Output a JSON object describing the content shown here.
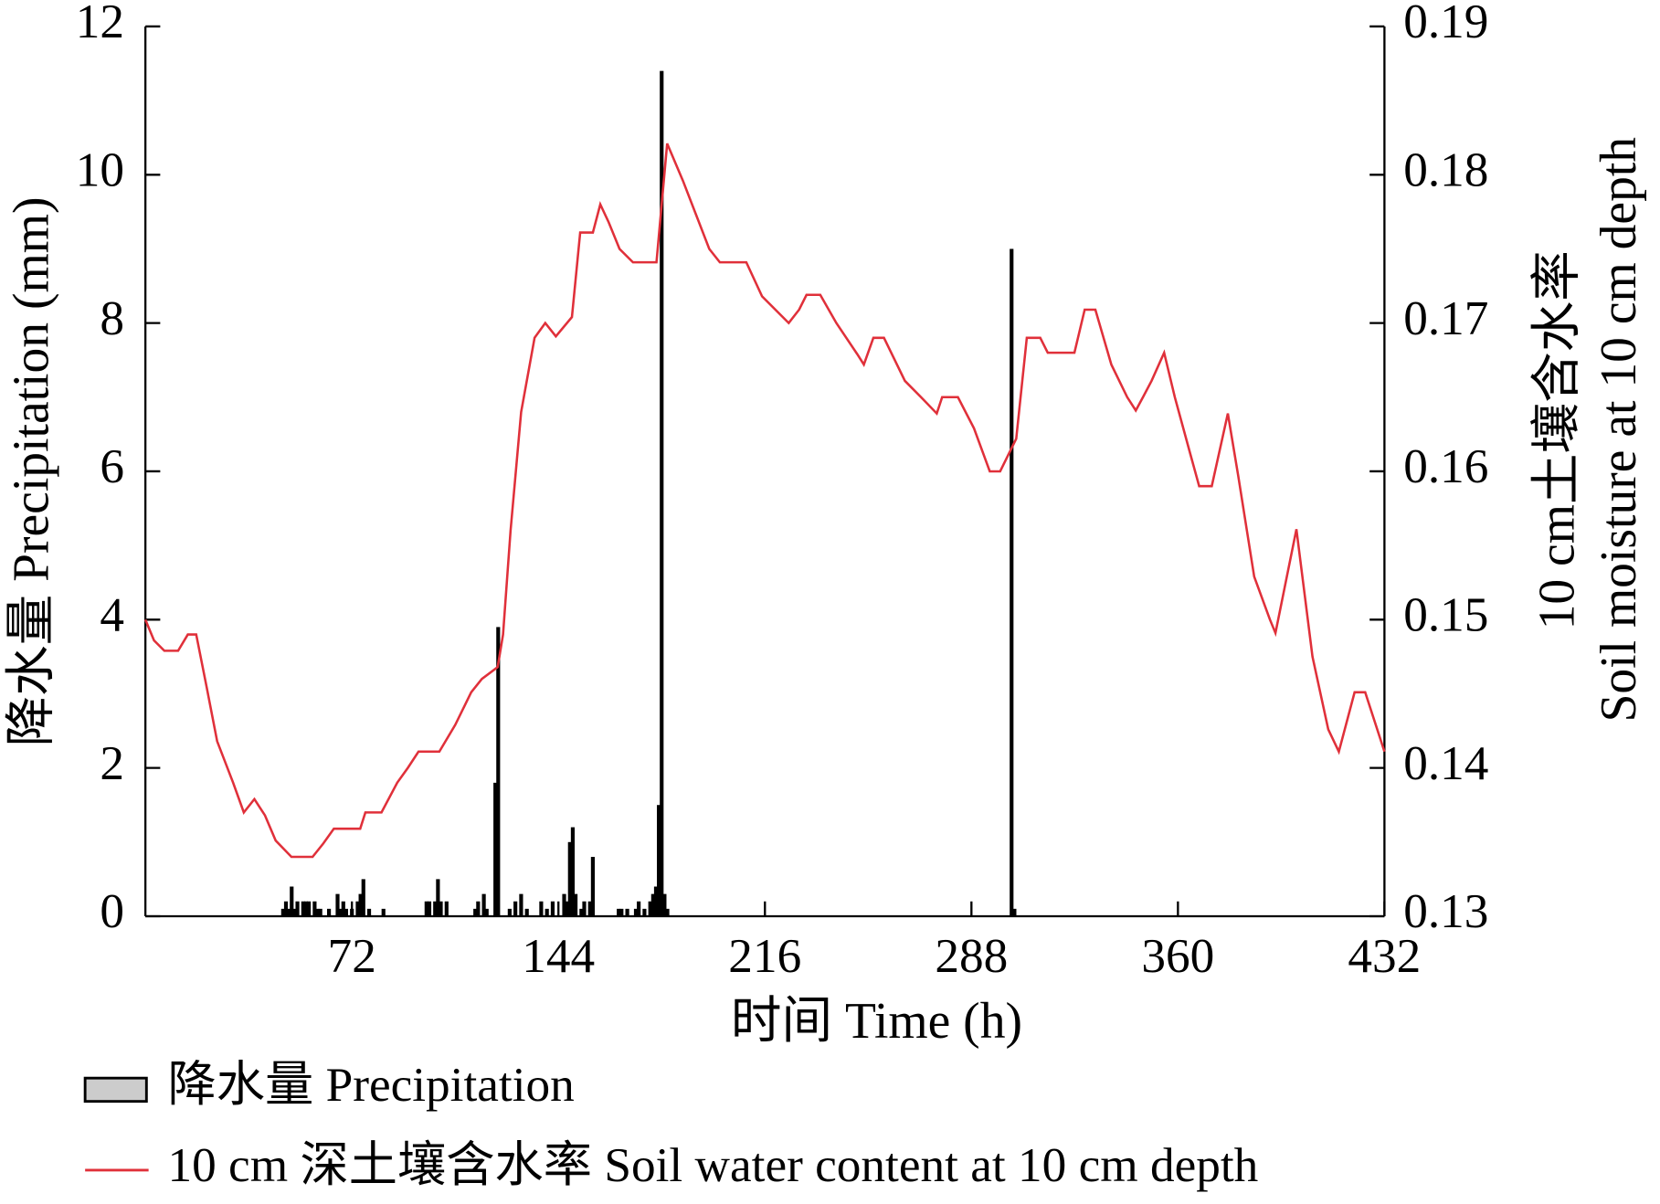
{
  "chart_data": {
    "type": "combo",
    "xlabel": "时间 Time (h)",
    "ylabel": "降水量 Precipitation (mm)",
    "y2label": [
      "10 cm土壤含水率",
      "Soil moisture at 10 cm depth"
    ],
    "xlim": [
      0,
      432
    ],
    "xticks": [
      72,
      144,
      216,
      288,
      360,
      432
    ],
    "ylim": [
      0,
      12
    ],
    "yticks": [
      0,
      2,
      4,
      6,
      8,
      10,
      12
    ],
    "y2lim": [
      0.13,
      0.19
    ],
    "y2ticks": [
      0.13,
      0.14,
      0.15,
      0.16,
      0.17,
      0.18,
      0.19
    ],
    "series": [
      {
        "name": "降水量 Precipitation",
        "kind": "bar",
        "color": "#000000",
        "legend_color": "#cccccc",
        "x": [
          48,
          49,
          50,
          51,
          52,
          53,
          55,
          56,
          57,
          59,
          60,
          61,
          64,
          67,
          68,
          69,
          70,
          72,
          74,
          75,
          76,
          78,
          83,
          98,
          99,
          101,
          102,
          103,
          105,
          115,
          116,
          118,
          119,
          122,
          123,
          127,
          129,
          131,
          133,
          138,
          140,
          142,
          146,
          147,
          148,
          149,
          150,
          152,
          153,
          155,
          156,
          165,
          166,
          168,
          171,
          172,
          174,
          176,
          177,
          178,
          179,
          180,
          181,
          182,
          302,
          303
        ],
        "values": [
          0.1,
          0.2,
          0.1,
          0.4,
          0.1,
          0.2,
          0.2,
          0.2,
          0.2,
          0.2,
          0.1,
          0.1,
          0.1,
          0.3,
          0.1,
          0.2,
          0.1,
          0.1,
          0.2,
          0.3,
          0.5,
          0.1,
          0.1,
          0.2,
          0.2,
          0.2,
          0.5,
          0.2,
          0.2,
          0.1,
          0.2,
          0.3,
          0.1,
          1.8,
          3.9,
          0.1,
          0.2,
          0.3,
          0.1,
          0.2,
          0.1,
          0.2,
          0.3,
          0.2,
          1.0,
          1.2,
          0.3,
          0.1,
          0.2,
          0.2,
          0.8,
          0.1,
          0.1,
          0.1,
          0.1,
          0.2,
          0.1,
          0.2,
          0.3,
          0.4,
          1.5,
          11.4,
          0.3,
          0.1,
          9.0,
          0.1
        ]
      },
      {
        "name": "10 cm 深土壤含水率 Soil water content at 10 cm depth",
        "kind": "line",
        "axis": "y2",
        "color": "#e0303a",
        "x": [
          0,
          3,
          6.6,
          11.4,
          14.8,
          17.7,
          21.4,
          25,
          30.6,
          34.3,
          38,
          41.7,
          45.4,
          50.9,
          58.3,
          62,
          65.7,
          74.9,
          76.7,
          82.3,
          87.8,
          91.5,
          95.2,
          102.5,
          108,
          113.6,
          117.3,
          122.8,
          124.7,
          127.3,
          131,
          135.7,
          139.4,
          143.1,
          148.7,
          151.6,
          156,
          158.6,
          161.5,
          165.3,
          170,
          178.2,
          181.9,
          187.4,
          196.6,
          200.3,
          209.5,
          215,
          224.3,
          227.9,
          230.5,
          235.3,
          240.9,
          248.2,
          250.5,
          253.8,
          257.5,
          264.8,
          270.4,
          275.9,
          277.8,
          283.3,
          288.9,
          294.4,
          298,
          303.6,
          307.3,
          312,
          314.6,
          323.9,
          327.5,
          331.2,
          336.8,
          342.3,
          345.3,
          347.8,
          350.8,
          355.2,
          358.9,
          364.4,
          367.4,
          371.8,
          377.4,
          381,
          386.6,
          392.1,
          394,
          401.3,
          406.9,
          412.4,
          416.1,
          421.6,
          425.3,
          432
        ],
        "values": [
          0.15,
          0.1486,
          0.1479,
          0.1479,
          0.149,
          0.149,
          0.1454,
          0.1418,
          0.139,
          0.137,
          0.1379,
          0.1368,
          0.1351,
          0.134,
          0.134,
          0.1349,
          0.1359,
          0.1359,
          0.137,
          0.137,
          0.139,
          0.14,
          0.1411,
          0.1411,
          0.1429,
          0.1451,
          0.146,
          0.1468,
          0.149,
          0.156,
          0.164,
          0.169,
          0.17,
          0.1691,
          0.1704,
          0.1761,
          0.1761,
          0.178,
          0.1768,
          0.175,
          0.1741,
          0.1741,
          0.1821,
          0.1796,
          0.175,
          0.1741,
          0.1741,
          0.1718,
          0.17,
          0.1709,
          0.1719,
          0.1719,
          0.17,
          0.1679,
          0.1672,
          0.169,
          0.169,
          0.1661,
          0.165,
          0.1639,
          0.165,
          0.165,
          0.1629,
          0.16,
          0.16,
          0.1622,
          0.169,
          0.169,
          0.168,
          0.168,
          0.1709,
          0.1709,
          0.1672,
          0.165,
          0.1641,
          0.165,
          0.1661,
          0.168,
          0.165,
          0.1611,
          0.159,
          0.159,
          0.1639,
          0.1597,
          0.1529,
          0.15,
          0.1491,
          0.1561,
          0.1475,
          0.1426,
          0.1411,
          0.1451,
          0.1451,
          0.1411
        ]
      }
    ]
  }
}
